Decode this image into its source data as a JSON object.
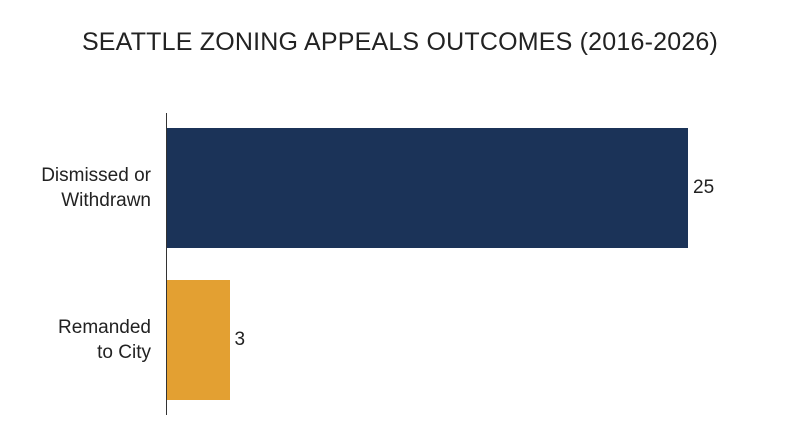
{
  "chart_data": {
    "type": "barh",
    "title": "SEATTLE ZONING APPEALS OUTCOMES (2016-2026)",
    "categories": [
      "Dismissed or\nWithdrawn",
      "Remanded\nto City"
    ],
    "values": [
      25,
      3
    ],
    "colors": [
      "#1b3358",
      "#e3a032"
    ]
  }
}
